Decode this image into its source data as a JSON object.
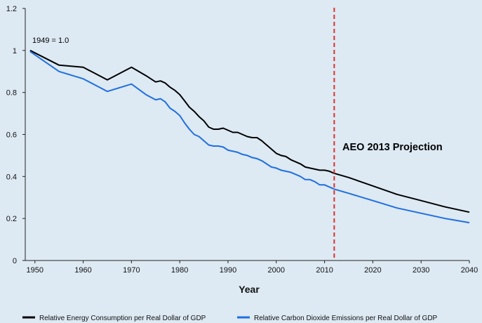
{
  "chart_data": {
    "type": "line",
    "title": "",
    "xlabel": "Year",
    "ylabel": "",
    "xlim": [
      1948,
      2040
    ],
    "ylim": [
      0,
      1.2
    ],
    "x_ticks": [
      "1950",
      "1960",
      "1970",
      "1980",
      "1990",
      "2000",
      "2010",
      "2020",
      "2030",
      "2040"
    ],
    "y_ticks": [
      "0",
      "0.2",
      "0.4",
      "0.6",
      "0.8",
      "1",
      "1.2"
    ],
    "grid": false,
    "legend_position": "bottom",
    "annotations": {
      "baseline_note": "1949 = 1.0",
      "projection_label": "AEO 2013 Projection",
      "projection_year": 2012
    },
    "series": [
      {
        "name": "Relative Energy Consumption per Real Dollar of GDP",
        "color": "#000000",
        "points": [
          [
            1949,
            1.0
          ],
          [
            1955,
            0.93
          ],
          [
            1960,
            0.92
          ],
          [
            1965,
            0.86
          ],
          [
            1970,
            0.92
          ],
          [
            1973,
            0.88
          ],
          [
            1975,
            0.85
          ],
          [
            1976,
            0.855
          ],
          [
            1977,
            0.845
          ],
          [
            1978,
            0.825
          ],
          [
            1979,
            0.81
          ],
          [
            1980,
            0.79
          ],
          [
            1981,
            0.76
          ],
          [
            1982,
            0.73
          ],
          [
            1983,
            0.71
          ],
          [
            1984,
            0.685
          ],
          [
            1985,
            0.665
          ],
          [
            1986,
            0.635
          ],
          [
            1987,
            0.625
          ],
          [
            1988,
            0.625
          ],
          [
            1989,
            0.63
          ],
          [
            1990,
            0.62
          ],
          [
            1991,
            0.61
          ],
          [
            1992,
            0.61
          ],
          [
            1993,
            0.6
          ],
          [
            1994,
            0.59
          ],
          [
            1995,
            0.585
          ],
          [
            1996,
            0.585
          ],
          [
            1997,
            0.57
          ],
          [
            1998,
            0.55
          ],
          [
            1999,
            0.53
          ],
          [
            2000,
            0.51
          ],
          [
            2001,
            0.5
          ],
          [
            2002,
            0.495
          ],
          [
            2003,
            0.48
          ],
          [
            2004,
            0.47
          ],
          [
            2005,
            0.46
          ],
          [
            2006,
            0.445
          ],
          [
            2007,
            0.44
          ],
          [
            2008,
            0.435
          ],
          [
            2009,
            0.43
          ],
          [
            2010,
            0.43
          ],
          [
            2011,
            0.425
          ],
          [
            2012,
            0.415
          ],
          [
            2015,
            0.395
          ],
          [
            2020,
            0.355
          ],
          [
            2025,
            0.315
          ],
          [
            2030,
            0.285
          ],
          [
            2035,
            0.255
          ],
          [
            2040,
            0.23
          ]
        ]
      },
      {
        "name": "Relative Carbon Dioxide Emissions per Real Dollar of GDP",
        "color": "#1f6fe0",
        "points": [
          [
            1949,
            0.995
          ],
          [
            1955,
            0.9
          ],
          [
            1960,
            0.865
          ],
          [
            1965,
            0.805
          ],
          [
            1970,
            0.84
          ],
          [
            1973,
            0.79
          ],
          [
            1975,
            0.765
          ],
          [
            1976,
            0.77
          ],
          [
            1977,
            0.755
          ],
          [
            1978,
            0.725
          ],
          [
            1979,
            0.71
          ],
          [
            1980,
            0.69
          ],
          [
            1981,
            0.655
          ],
          [
            1982,
            0.625
          ],
          [
            1983,
            0.6
          ],
          [
            1984,
            0.59
          ],
          [
            1985,
            0.57
          ],
          [
            1986,
            0.55
          ],
          [
            1987,
            0.545
          ],
          [
            1988,
            0.545
          ],
          [
            1989,
            0.54
          ],
          [
            1990,
            0.525
          ],
          [
            1991,
            0.52
          ],
          [
            1992,
            0.515
          ],
          [
            1993,
            0.505
          ],
          [
            1994,
            0.5
          ],
          [
            1995,
            0.49
          ],
          [
            1996,
            0.485
          ],
          [
            1997,
            0.475
          ],
          [
            1998,
            0.46
          ],
          [
            1999,
            0.445
          ],
          [
            2000,
            0.44
          ],
          [
            2001,
            0.43
          ],
          [
            2002,
            0.425
          ],
          [
            2003,
            0.42
          ],
          [
            2004,
            0.41
          ],
          [
            2005,
            0.4
          ],
          [
            2006,
            0.385
          ],
          [
            2007,
            0.385
          ],
          [
            2008,
            0.375
          ],
          [
            2009,
            0.36
          ],
          [
            2010,
            0.36
          ],
          [
            2011,
            0.35
          ],
          [
            2012,
            0.34
          ],
          [
            2015,
            0.32
          ],
          [
            2020,
            0.285
          ],
          [
            2025,
            0.25
          ],
          [
            2030,
            0.225
          ],
          [
            2035,
            0.2
          ],
          [
            2040,
            0.18
          ]
        ]
      }
    ]
  }
}
